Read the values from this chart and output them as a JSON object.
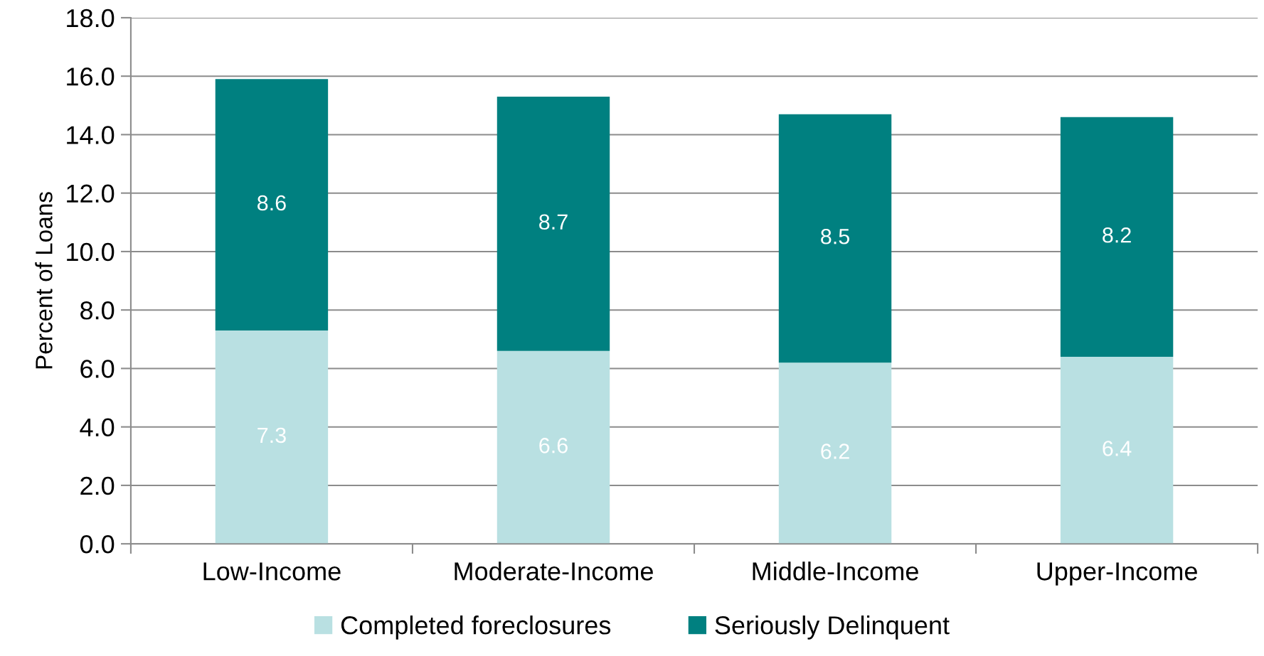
{
  "chart_data": {
    "type": "bar",
    "stacked": true,
    "ylabel": "Percent of Loans",
    "categories": [
      "Low-Income",
      "Moderate-Income",
      "Middle-Income",
      "Upper-Income"
    ],
    "series": [
      {
        "name": "Completed foreclosures",
        "color": "#b9e0e2",
        "values": [
          7.3,
          6.6,
          6.2,
          6.4
        ]
      },
      {
        "name": "Seriously Delinquent",
        "color": "#008080",
        "values": [
          8.6,
          8.7,
          8.5,
          8.2
        ]
      }
    ],
    "ylim": [
      0,
      18
    ],
    "yticks": [
      {
        "value": 0,
        "label": "0.0"
      },
      {
        "value": 2,
        "label": "2.0"
      },
      {
        "value": 4,
        "label": "4.0"
      },
      {
        "value": 6,
        "label": "6.0"
      },
      {
        "value": 8,
        "label": "8.0"
      },
      {
        "value": 10,
        "label": "10.0"
      },
      {
        "value": 12,
        "label": "12.0"
      },
      {
        "value": 14,
        "label": "14.0"
      },
      {
        "value": 16,
        "label": "16.0"
      },
      {
        "value": 18,
        "label": "18.0"
      }
    ],
    "grid": "y",
    "legend": "bottom",
    "data_labels": true
  }
}
